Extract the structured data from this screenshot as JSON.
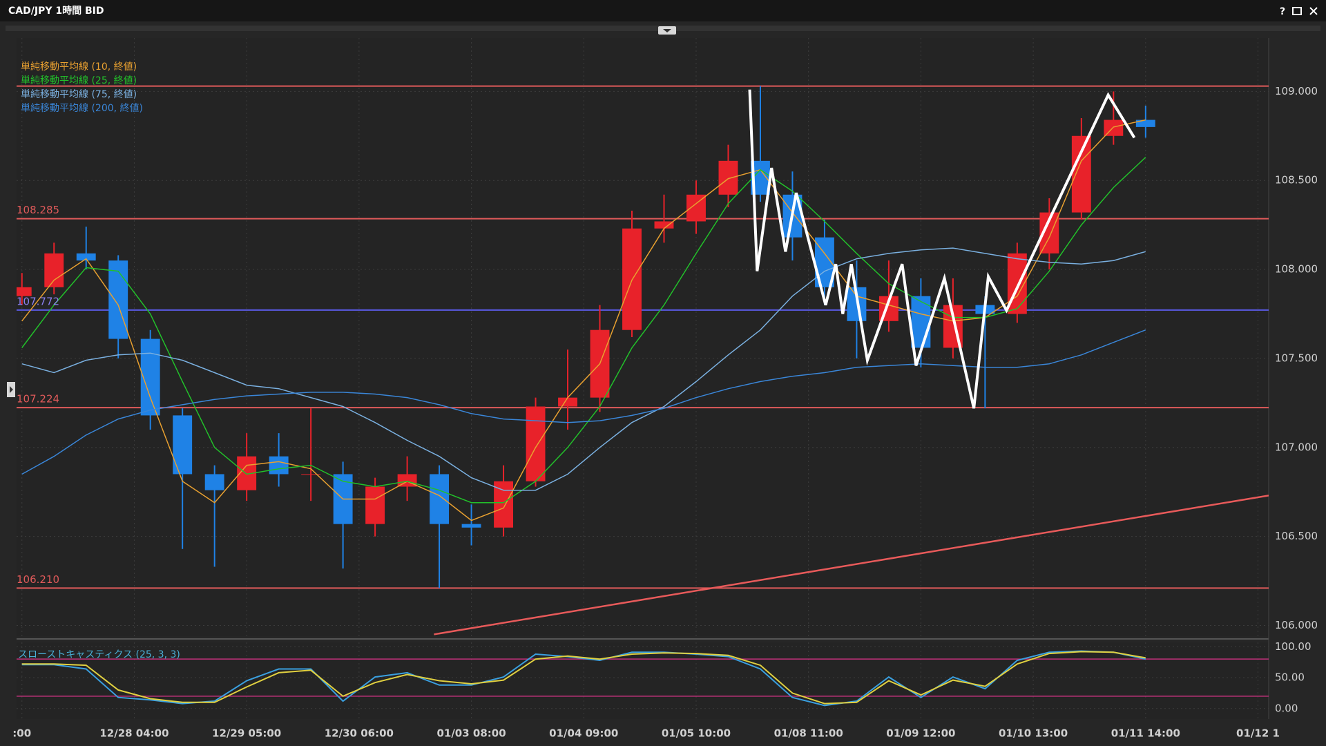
{
  "window": {
    "title": "CAD/JPY 1時間 BID",
    "help": "?"
  },
  "chart_data": [
    {
      "type": "candlestick",
      "x": [
        0,
        6,
        12,
        18,
        24,
        30,
        36,
        42,
        48,
        54,
        60,
        66,
        72,
        78,
        84,
        90,
        96,
        102,
        108,
        114,
        120,
        126,
        132,
        138,
        144,
        150,
        156,
        162,
        168,
        174,
        180,
        186,
        192,
        198,
        204,
        210
      ],
      "ohlc": [
        [
          107.85,
          107.98,
          107.8,
          107.9
        ],
        [
          107.9,
          108.15,
          107.86,
          108.09
        ],
        [
          108.09,
          108.24,
          108.0,
          108.05
        ],
        [
          108.05,
          108.08,
          107.5,
          107.61
        ],
        [
          107.61,
          107.66,
          107.1,
          107.18
        ],
        [
          107.18,
          107.22,
          106.43,
          106.85
        ],
        [
          106.85,
          106.9,
          106.33,
          106.76
        ],
        [
          106.76,
          107.08,
          106.7,
          106.95
        ],
        [
          106.95,
          107.08,
          106.78,
          106.85
        ],
        [
          106.85,
          107.22,
          106.7,
          106.85
        ],
        [
          106.85,
          106.92,
          106.32,
          106.57
        ],
        [
          106.57,
          106.83,
          106.5,
          106.78
        ],
        [
          106.78,
          106.95,
          106.7,
          106.85
        ],
        [
          106.85,
          106.9,
          106.21,
          106.57
        ],
        [
          106.57,
          106.68,
          106.45,
          106.55
        ],
        [
          106.55,
          106.9,
          106.5,
          106.81
        ],
        [
          106.81,
          107.28,
          106.78,
          107.23
        ],
        [
          107.23,
          107.55,
          107.1,
          107.28
        ],
        [
          107.28,
          107.8,
          107.2,
          107.66
        ],
        [
          107.66,
          108.33,
          107.62,
          108.23
        ],
        [
          108.23,
          108.42,
          108.15,
          108.27
        ],
        [
          108.27,
          108.5,
          108.2,
          108.42
        ],
        [
          108.42,
          108.7,
          108.35,
          108.61
        ],
        [
          108.61,
          109.03,
          108.38,
          108.42
        ],
        [
          108.42,
          108.55,
          108.05,
          108.18
        ],
        [
          108.18,
          108.28,
          107.8,
          107.9
        ],
        [
          107.9,
          108.05,
          107.5,
          107.71
        ],
        [
          107.71,
          108.05,
          107.65,
          107.85
        ],
        [
          107.85,
          107.95,
          107.45,
          107.56
        ],
        [
          107.56,
          107.95,
          107.5,
          107.8
        ],
        [
          107.8,
          107.85,
          107.22,
          107.75
        ],
        [
          107.75,
          108.15,
          107.7,
          108.09
        ],
        [
          108.09,
          108.4,
          108.0,
          108.32
        ],
        [
          108.32,
          108.85,
          108.28,
          108.75
        ],
        [
          108.75,
          109.0,
          108.7,
          108.84
        ],
        [
          108.84,
          108.92,
          108.74,
          108.8
        ]
      ],
      "up_color": "#e8222a",
      "down_color": "#1f82e6",
      "series": [
        {
          "name": "単純移動平均線 (10, 終値)",
          "color": "#e8a030",
          "values": [
            107.71,
            107.94,
            108.06,
            107.8,
            107.28,
            106.81,
            106.69,
            106.9,
            106.92,
            106.88,
            106.71,
            106.71,
            106.81,
            106.73,
            106.59,
            106.66,
            107.0,
            107.28,
            107.47,
            107.94,
            108.23,
            108.37,
            108.51,
            108.56,
            108.32,
            108.09,
            107.85,
            107.8,
            107.75,
            107.71,
            107.73,
            107.85,
            108.18,
            108.61,
            108.8,
            108.84
          ]
        },
        {
          "name": "単純移動平均線 (25, 終値)",
          "color": "#22c02a",
          "values": [
            107.56,
            107.8,
            108.01,
            107.99,
            107.75,
            107.37,
            107.0,
            106.85,
            106.88,
            106.9,
            106.81,
            106.78,
            106.81,
            106.76,
            106.69,
            106.69,
            106.81,
            107.0,
            107.23,
            107.56,
            107.8,
            108.09,
            108.37,
            108.56,
            108.44,
            108.27,
            108.09,
            107.92,
            107.82,
            107.73,
            107.73,
            107.78,
            107.99,
            108.25,
            108.46,
            108.63
          ]
        },
        {
          "name": "単純移動平均線 (75, 終値)",
          "color": "#7ab0e0",
          "values": [
            107.47,
            107.42,
            107.49,
            107.52,
            107.53,
            107.49,
            107.42,
            107.35,
            107.33,
            107.28,
            107.23,
            107.14,
            107.04,
            106.95,
            106.83,
            106.76,
            106.76,
            106.85,
            107.0,
            107.14,
            107.23,
            107.37,
            107.52,
            107.66,
            107.85,
            107.99,
            108.06,
            108.09,
            108.11,
            108.12,
            108.09,
            108.06,
            108.04,
            108.03,
            108.05,
            108.1
          ]
        },
        {
          "name": "単純移動平均線 (200, 終値)",
          "color": "#3a86d8",
          "values": [
            106.85,
            106.95,
            107.07,
            107.16,
            107.21,
            107.24,
            107.27,
            107.29,
            107.3,
            107.31,
            107.31,
            107.3,
            107.28,
            107.24,
            107.19,
            107.16,
            107.15,
            107.14,
            107.15,
            107.18,
            107.22,
            107.28,
            107.33,
            107.37,
            107.4,
            107.42,
            107.45,
            107.46,
            107.47,
            107.46,
            107.45,
            107.45,
            107.47,
            107.52,
            107.59,
            107.66
          ]
        }
      ],
      "hlines": [
        {
          "value": 109.03,
          "color": "#e05a5a"
        },
        {
          "value": 108.285,
          "label": "108.285",
          "color": "#e05a5a"
        },
        {
          "value": 107.772,
          "label": "107.772",
          "color": "#5a5ae6",
          "label_color": "#8a80f0"
        },
        {
          "value": 107.224,
          "label": "107.224",
          "color": "#e05a5a"
        },
        {
          "value": 106.21,
          "label": "106.210",
          "color": "#e05a5a"
        }
      ],
      "trendline": {
        "points": [
          [
            77,
            105.95
          ],
          [
            233,
            106.73
          ]
        ],
        "color": "#e85a5a"
      },
      "zigzag": {
        "points": [
          [
            136.0,
            109.01
          ],
          [
            137.4,
            107.99
          ],
          [
            140.1,
            108.57
          ],
          [
            142.7,
            108.1
          ],
          [
            144.7,
            108.43
          ],
          [
            150.2,
            107.8
          ],
          [
            152.1,
            108.03
          ],
          [
            153.4,
            107.75
          ],
          [
            155.0,
            108.03
          ],
          [
            158.0,
            107.49
          ],
          [
            164.5,
            108.03
          ],
          [
            167.1,
            107.46
          ],
          [
            172.4,
            107.95
          ],
          [
            177.9,
            107.22
          ],
          [
            180.6,
            107.96
          ],
          [
            184.0,
            107.77
          ],
          [
            203.0,
            108.98
          ],
          [
            207.9,
            108.74
          ]
        ],
        "color": "#ffffff"
      },
      "xlim": [
        -1,
        233
      ],
      "ylim": [
        105.94,
        109.3
      ],
      "yticks": [
        {
          "value": 106,
          "label": "106.000"
        },
        {
          "value": 106.5,
          "label": "106.500"
        },
        {
          "value": 107,
          "label": "107.000"
        },
        {
          "value": 107.5,
          "label": "107.500"
        },
        {
          "value": 108,
          "label": "108.000"
        },
        {
          "value": 108.5,
          "label": "108.500"
        },
        {
          "value": 109,
          "label": "109.000"
        }
      ],
      "xticks": [
        {
          "value": 0,
          "label": ":00"
        },
        {
          "value": 21,
          "label": "12/28 04:00"
        },
        {
          "value": 42,
          "label": "12/29 05:00"
        },
        {
          "value": 63,
          "label": "12/30 06:00"
        },
        {
          "value": 84,
          "label": "01/03 08:00"
        },
        {
          "value": 105,
          "label": "01/04 09:00"
        },
        {
          "value": 126,
          "label": "01/05 10:00"
        },
        {
          "value": 147,
          "label": "01/08 11:00"
        },
        {
          "value": 168,
          "label": "01/09 12:00"
        },
        {
          "value": 189,
          "label": "01/10 13:00"
        },
        {
          "value": 210,
          "label": "01/11 14:00"
        },
        {
          "value": 231,
          "label": "01/12 1"
        }
      ],
      "grid": true
    },
    {
      "type": "line",
      "title": "スローストキャスティクス (25, 3, 3)",
      "x": [
        0,
        6,
        12,
        18,
        24,
        30,
        36,
        42,
        48,
        54,
        60,
        66,
        72,
        78,
        84,
        90,
        96,
        102,
        108,
        114,
        120,
        126,
        132,
        138,
        144,
        150,
        156,
        162,
        168,
        174,
        180,
        186,
        192,
        198,
        204,
        210
      ],
      "series": [
        {
          "color": "#3aa0e0",
          "values": [
            71,
            71,
            64,
            18,
            14,
            8,
            12,
            45,
            64,
            64,
            12,
            51,
            58,
            38,
            38,
            51,
            88,
            84,
            78,
            91,
            91,
            88,
            84,
            64,
            18,
            5,
            12,
            51,
            18,
            51,
            32,
            78,
            91,
            93,
            91,
            80
          ]
        },
        {
          "color": "#e0d040",
          "values": [
            72,
            72,
            70,
            30,
            16,
            10,
            10,
            35,
            58,
            62,
            20,
            42,
            55,
            45,
            40,
            46,
            80,
            85,
            80,
            88,
            90,
            89,
            86,
            70,
            25,
            8,
            10,
            45,
            22,
            46,
            36,
            72,
            89,
            92,
            91,
            82
          ]
        }
      ],
      "levels": [
        80,
        20
      ],
      "level_color": "#c0307a",
      "xlim": [
        -1,
        233
      ],
      "ylim": [
        -17,
        107
      ],
      "yticks": [
        {
          "value": 0,
          "label": "0.00"
        },
        {
          "value": 50,
          "label": "50.00"
        },
        {
          "value": 100,
          "label": "100.00"
        }
      ],
      "grid": true
    }
  ]
}
